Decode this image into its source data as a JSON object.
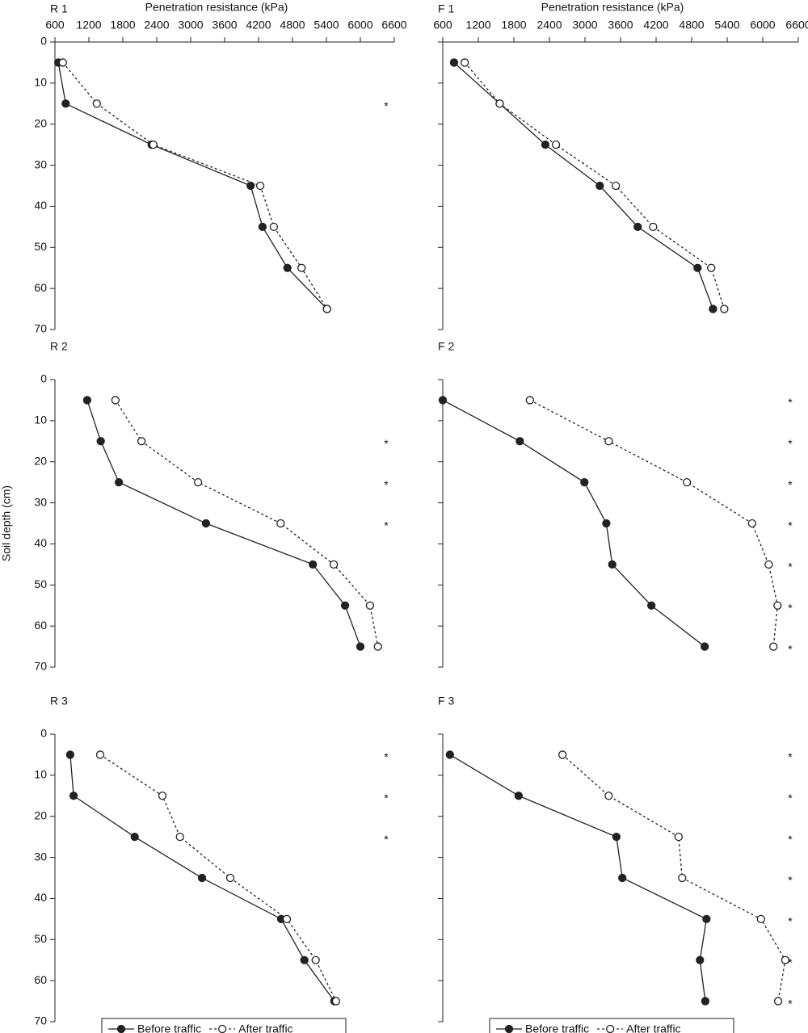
{
  "chart_data": [
    {
      "type": "line",
      "title": "R 1",
      "xlabel": "Penetration resistance (kPa)",
      "y": [
        5,
        15,
        25,
        35,
        45,
        55,
        65
      ],
      "series": [
        {
          "name": "Before traffic",
          "color": "#222",
          "marker": "filled",
          "values": [
            660,
            790,
            2310,
            4060,
            4270,
            4710,
            5410
          ]
        },
        {
          "name": "After traffic",
          "color": "#222",
          "marker": "open",
          "values": [
            740,
            1340,
            2340,
            4230,
            4470,
            4960,
            5410
          ]
        }
      ],
      "annotations": [
        {
          "text": "*",
          "y": 15
        }
      ],
      "xlim": [
        600,
        6600
      ],
      "xticks": [
        600,
        1200,
        1800,
        2400,
        3000,
        3600,
        4200,
        4800,
        5400,
        6000,
        6600
      ],
      "ylim": [
        0,
        70
      ],
      "yticks": [
        0,
        10,
        20,
        30,
        40,
        50,
        60,
        70
      ],
      "ytick_labels": true,
      "y_reversed": true
    },
    {
      "type": "line",
      "title": "F 1",
      "xlabel": "Penetration resistance (kPa)",
      "y": [
        5,
        15,
        25,
        35,
        45,
        55,
        65
      ],
      "series": [
        {
          "name": "Before traffic",
          "color": "#222",
          "marker": "filled",
          "values": [
            790,
            1560,
            2330,
            3250,
            3890,
            4900,
            5160
          ]
        },
        {
          "name": "After traffic",
          "color": "#222",
          "marker": "open",
          "values": [
            970,
            1560,
            2510,
            3520,
            4150,
            5130,
            5350
          ]
        }
      ],
      "annotations": [],
      "xlim": [
        600,
        6600
      ],
      "xticks": [
        600,
        1200,
        1800,
        2400,
        3000,
        3600,
        4200,
        4800,
        5400,
        6000,
        6600
      ],
      "ylim": [
        0,
        70
      ],
      "yticks": [
        0,
        10,
        20,
        30,
        40,
        50,
        60,
        70
      ],
      "ytick_labels": false,
      "y_reversed": true
    },
    {
      "type": "line",
      "title": "R 2",
      "ylabel": "Soil depth (cm)",
      "y": [
        5,
        15,
        25,
        35,
        45,
        55,
        65
      ],
      "series": [
        {
          "name": "Before traffic",
          "color": "#222",
          "marker": "filled",
          "values": [
            1170,
            1410,
            1730,
            3270,
            5160,
            5730,
            6000
          ]
        },
        {
          "name": "After traffic",
          "color": "#222",
          "marker": "open",
          "values": [
            1670,
            2130,
            3130,
            4590,
            5530,
            6170,
            6310
          ]
        }
      ],
      "annotations": [
        {
          "text": "*",
          "y": 15
        },
        {
          "text": "*",
          "y": 25
        },
        {
          "text": "*",
          "y": 35
        }
      ],
      "xlim": [
        600,
        6600
      ],
      "ylim": [
        0,
        70
      ],
      "yticks": [
        0,
        10,
        20,
        30,
        40,
        50,
        60,
        70
      ],
      "ytick_labels": true,
      "y_reversed": true
    },
    {
      "type": "line",
      "title": "F 2",
      "y": [
        5,
        15,
        25,
        35,
        45,
        55,
        65
      ],
      "series": [
        {
          "name": "Before traffic",
          "color": "#222",
          "marker": "filled",
          "values": [
            600,
            1900,
            2990,
            3360,
            3460,
            4120,
            5020
          ]
        },
        {
          "name": "After traffic",
          "color": "#222",
          "marker": "open",
          "values": [
            2070,
            3400,
            4720,
            5820,
            6100,
            6250,
            6180
          ]
        }
      ],
      "annotations": [
        {
          "text": "*",
          "y": 5
        },
        {
          "text": "*",
          "y": 15
        },
        {
          "text": "*",
          "y": 25
        },
        {
          "text": "*",
          "y": 35
        },
        {
          "text": "*",
          "y": 45
        },
        {
          "text": "*",
          "y": 55
        },
        {
          "text": "*",
          "y": 65
        }
      ],
      "xlim": [
        600,
        6600
      ],
      "ylim": [
        0,
        70
      ],
      "yticks": [
        0,
        10,
        20,
        30,
        40,
        50,
        60,
        70
      ],
      "ytick_labels": false,
      "y_reversed": true
    },
    {
      "type": "line",
      "title": "R 3",
      "legend": true,
      "y": [
        5,
        15,
        25,
        35,
        45,
        55,
        65
      ],
      "series": [
        {
          "name": "Before traffic",
          "color": "#222",
          "marker": "filled",
          "values": [
            870,
            930,
            2010,
            3200,
            4600,
            5010,
            5540
          ]
        },
        {
          "name": "After traffic",
          "color": "#222",
          "marker": "open",
          "values": [
            1400,
            2500,
            2810,
            3700,
            4700,
            5210,
            5570
          ]
        }
      ],
      "annotations": [
        {
          "text": "*",
          "y": 5
        },
        {
          "text": "*",
          "y": 15
        },
        {
          "text": "*",
          "y": 25
        }
      ],
      "xlim": [
        600,
        6600
      ],
      "ylim": [
        0,
        70
      ],
      "yticks": [
        0,
        10,
        20,
        30,
        40,
        50,
        60,
        70
      ],
      "ytick_labels": true,
      "y_reversed": true
    },
    {
      "type": "line",
      "title": "F 3",
      "legend": true,
      "y": [
        5,
        15,
        25,
        35,
        45,
        55,
        65
      ],
      "series": [
        {
          "name": "Before traffic",
          "color": "#222",
          "marker": "filled",
          "values": [
            720,
            1880,
            3530,
            3630,
            5050,
            4940,
            5030
          ]
        },
        {
          "name": "After traffic",
          "color": "#222",
          "marker": "open",
          "values": [
            2620,
            3400,
            4580,
            4640,
            5970,
            6380,
            6260
          ]
        }
      ],
      "annotations": [
        {
          "text": "*",
          "y": 5
        },
        {
          "text": "*",
          "y": 15
        },
        {
          "text": "*",
          "y": 25
        },
        {
          "text": "*",
          "y": 35
        },
        {
          "text": "*",
          "y": 45
        },
        {
          "text": "*",
          "y": 55
        },
        {
          "text": "*",
          "y": 65
        }
      ],
      "xlim": [
        600,
        6600
      ],
      "ylim": [
        0,
        70
      ],
      "yticks": [
        0,
        10,
        20,
        30,
        40,
        50,
        60,
        70
      ],
      "ytick_labels": false,
      "y_reversed": true
    }
  ]
}
